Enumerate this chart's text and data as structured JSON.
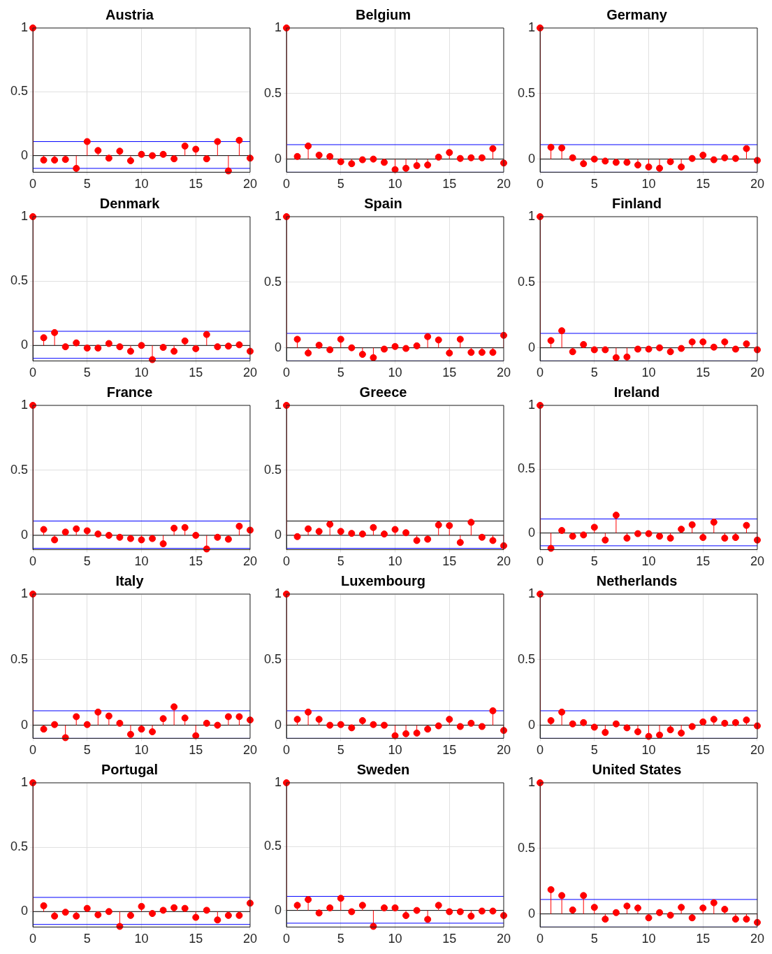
{
  "chart_data": [
    {
      "type": "lollipop",
      "title": "Austria",
      "x": [
        0,
        1,
        2,
        3,
        4,
        5,
        6,
        7,
        8,
        9,
        10,
        11,
        12,
        13,
        14,
        15,
        16,
        17,
        18,
        19,
        20
      ],
      "values": [
        1,
        -0.035,
        -0.035,
        -0.03,
        -0.1,
        0.11,
        0.04,
        -0.02,
        0.035,
        -0.04,
        0.01,
        0,
        0.01,
        -0.025,
        0.075,
        0.05,
        -0.025,
        0.11,
        -0.12,
        0.12,
        -0.02
      ],
      "color": "#ff0000",
      "marker": "circle",
      "xlim": [
        0,
        20
      ],
      "xticks": [
        0,
        5,
        10,
        15,
        20
      ],
      "ylim": [
        -0.13,
        1
      ],
      "yticks": [
        0,
        0.5,
        1
      ],
      "grid": true,
      "ref_lines": [
        {
          "axis": "y",
          "value": 0.11,
          "color": "#0000ff"
        },
        {
          "axis": "y",
          "value": -0.1,
          "color": "#0000ff"
        }
      ]
    },
    {
      "type": "lollipop",
      "title": "Belgium",
      "x": [
        0,
        1,
        2,
        3,
        4,
        5,
        6,
        7,
        8,
        9,
        10,
        11,
        12,
        13,
        14,
        15,
        16,
        17,
        18,
        19,
        20
      ],
      "values": [
        1,
        0.02,
        0.1,
        0.03,
        0.02,
        -0.02,
        -0.035,
        -0.005,
        0,
        -0.025,
        -0.08,
        -0.07,
        -0.05,
        -0.045,
        0.015,
        0.05,
        0.005,
        0.01,
        0.01,
        0.08,
        -0.03
      ],
      "color": "#ff0000",
      "marker": "circle",
      "xlim": [
        0,
        20
      ],
      "xticks": [
        0,
        5,
        10,
        15,
        20
      ],
      "ylim": [
        -0.1,
        1
      ],
      "yticks": [
        0,
        0.5,
        1
      ],
      "grid": true,
      "ref_lines": [
        {
          "axis": "y",
          "value": 0.11,
          "color": "#0000ff"
        },
        {
          "axis": "y",
          "value": -0.1,
          "color": "#0000ff"
        }
      ]
    },
    {
      "type": "lollipop",
      "title": "Germany",
      "x": [
        0,
        1,
        2,
        3,
        4,
        5,
        6,
        7,
        8,
        9,
        10,
        11,
        12,
        13,
        14,
        15,
        16,
        17,
        18,
        19,
        20
      ],
      "values": [
        1,
        0.09,
        0.085,
        0.01,
        -0.035,
        0,
        -0.015,
        -0.025,
        -0.025,
        -0.045,
        -0.06,
        -0.07,
        -0.02,
        -0.06,
        0.005,
        0.03,
        -0.005,
        0.01,
        0.005,
        0.08,
        -0.01
      ],
      "color": "#ff0000",
      "marker": "circle",
      "xlim": [
        0,
        20
      ],
      "xticks": [
        0,
        5,
        10,
        15,
        20
      ],
      "ylim": [
        -0.1,
        1
      ],
      "yticks": [
        0,
        0.5,
        1
      ],
      "grid": true,
      "ref_lines": [
        {
          "axis": "y",
          "value": 0.11,
          "color": "#0000ff"
        },
        {
          "axis": "y",
          "value": -0.1,
          "color": "#0000ff"
        }
      ]
    },
    {
      "type": "lollipop",
      "title": "Denmark",
      "x": [
        0,
        1,
        2,
        3,
        4,
        5,
        6,
        7,
        8,
        9,
        10,
        11,
        12,
        13,
        14,
        15,
        16,
        17,
        18,
        19,
        20
      ],
      "values": [
        1,
        0.06,
        0.1,
        -0.01,
        0.02,
        -0.02,
        -0.02,
        0.015,
        -0.01,
        -0.045,
        0,
        -0.11,
        -0.015,
        -0.045,
        0.035,
        -0.025,
        0.085,
        -0.01,
        -0.005,
        0.005,
        -0.045
      ],
      "color": "#ff0000",
      "marker": "circle",
      "xlim": [
        0,
        20
      ],
      "xticks": [
        0,
        5,
        10,
        15,
        20
      ],
      "ylim": [
        -0.12,
        1
      ],
      "yticks": [
        0,
        0.5,
        1
      ],
      "grid": true,
      "ref_lines": [
        {
          "axis": "y",
          "value": 0.11,
          "color": "#0000ff"
        },
        {
          "axis": "y",
          "value": -0.1,
          "color": "#0000ff"
        }
      ]
    },
    {
      "type": "lollipop",
      "title": "Spain",
      "x": [
        0,
        1,
        2,
        3,
        4,
        5,
        6,
        7,
        8,
        9,
        10,
        11,
        12,
        13,
        14,
        15,
        16,
        17,
        18,
        19,
        20
      ],
      "values": [
        1,
        0.065,
        -0.04,
        0.02,
        -0.015,
        0.065,
        0,
        -0.05,
        -0.075,
        -0.01,
        0.01,
        -0.005,
        0.015,
        0.085,
        0.06,
        -0.04,
        0.065,
        -0.035,
        -0.035,
        -0.035,
        0.095
      ],
      "color": "#ff0000",
      "marker": "circle",
      "xlim": [
        0,
        20
      ],
      "xticks": [
        0,
        5,
        10,
        15,
        20
      ],
      "ylim": [
        -0.1,
        1
      ],
      "yticks": [
        0,
        0.5,
        1
      ],
      "grid": true,
      "ref_lines": [
        {
          "axis": "y",
          "value": 0.11,
          "color": "#0000ff"
        },
        {
          "axis": "y",
          "value": -0.1,
          "color": "#0000ff"
        }
      ]
    },
    {
      "type": "lollipop",
      "title": "Finland",
      "x": [
        0,
        1,
        2,
        3,
        4,
        5,
        6,
        7,
        8,
        9,
        10,
        11,
        12,
        13,
        14,
        15,
        16,
        17,
        18,
        19,
        20
      ],
      "values": [
        1,
        0.055,
        0.13,
        -0.03,
        0.025,
        -0.015,
        -0.015,
        -0.075,
        -0.07,
        -0.01,
        -0.01,
        0,
        -0.03,
        -0.005,
        0.045,
        0.045,
        0.005,
        0.045,
        -0.01,
        0.03,
        -0.015
      ],
      "color": "#ff0000",
      "marker": "circle",
      "xlim": [
        0,
        20
      ],
      "xticks": [
        0,
        5,
        10,
        15,
        20
      ],
      "ylim": [
        -0.1,
        1
      ],
      "yticks": [
        0,
        0.5,
        1
      ],
      "grid": true,
      "ref_lines": [
        {
          "axis": "y",
          "value": 0.11,
          "color": "#0000ff"
        },
        {
          "axis": "y",
          "value": -0.1,
          "color": "#0000ff"
        }
      ]
    },
    {
      "type": "lollipop",
      "title": "France",
      "x": [
        0,
        1,
        2,
        3,
        4,
        5,
        6,
        7,
        8,
        9,
        10,
        11,
        12,
        13,
        14,
        15,
        16,
        17,
        18,
        19,
        20
      ],
      "values": [
        1,
        0.045,
        -0.035,
        0.025,
        0.05,
        0.035,
        0.01,
        0,
        -0.015,
        -0.025,
        -0.035,
        -0.025,
        -0.065,
        0.055,
        0.06,
        0,
        -0.105,
        -0.015,
        -0.03,
        0.07,
        0.04
      ],
      "color": "#ff0000",
      "marker": "circle",
      "xlim": [
        0,
        20
      ],
      "xticks": [
        0,
        5,
        10,
        15,
        20
      ],
      "ylim": [
        -0.11,
        1
      ],
      "yticks": [
        0,
        0.5,
        1
      ],
      "grid": true,
      "ref_lines": [
        {
          "axis": "y",
          "value": 0.11,
          "color": "#0000ff"
        },
        {
          "axis": "y",
          "value": -0.1,
          "color": "#0000ff"
        }
      ]
    },
    {
      "type": "lollipop",
      "title": "Greece",
      "x": [
        0,
        1,
        2,
        3,
        4,
        5,
        6,
        7,
        8,
        9,
        10,
        11,
        12,
        13,
        14,
        15,
        16,
        17,
        18,
        19,
        20
      ],
      "values": [
        1,
        -0.01,
        0.05,
        0.03,
        0.085,
        0.03,
        0.015,
        0.01,
        0.06,
        0.01,
        0.045,
        0.02,
        -0.04,
        -0.03,
        0.08,
        0.075,
        -0.055,
        0.1,
        -0.015,
        -0.04,
        -0.08
      ],
      "color": "#ff0000",
      "marker": "circle",
      "xlim": [
        0,
        20
      ],
      "xticks": [
        0,
        5,
        10,
        15,
        20
      ],
      "ylim": [
        -0.11,
        1
      ],
      "yticks": [
        0,
        0.5,
        1
      ],
      "grid": true,
      "ref_lines": [
        {
          "axis": "y",
          "value": 0.11,
          "color": "#000000"
        },
        {
          "axis": "y",
          "value": -0.1,
          "color": "#0000ff"
        }
      ]
    },
    {
      "type": "lollipop",
      "title": "Ireland",
      "x": [
        0,
        1,
        2,
        3,
        4,
        5,
        6,
        7,
        8,
        9,
        10,
        11,
        12,
        13,
        14,
        15,
        16,
        17,
        18,
        19,
        20
      ],
      "values": [
        1,
        -0.12,
        0.02,
        -0.025,
        -0.015,
        0.045,
        -0.055,
        0.14,
        -0.04,
        -0.005,
        -0.005,
        -0.025,
        -0.04,
        0.03,
        0.065,
        -0.035,
        0.085,
        -0.04,
        -0.035,
        0.06,
        -0.055
      ],
      "color": "#ff0000",
      "marker": "circle",
      "xlim": [
        0,
        20
      ],
      "xticks": [
        0,
        5,
        10,
        15,
        20
      ],
      "ylim": [
        -0.13,
        1
      ],
      "yticks": [
        0,
        0.5,
        1
      ],
      "grid": true,
      "ref_lines": [
        {
          "axis": "y",
          "value": 0.11,
          "color": "#0000ff"
        },
        {
          "axis": "y",
          "value": -0.1,
          "color": "#0000ff"
        }
      ]
    },
    {
      "type": "lollipop",
      "title": "Italy",
      "x": [
        0,
        1,
        2,
        3,
        4,
        5,
        6,
        7,
        8,
        9,
        10,
        11,
        12,
        13,
        14,
        15,
        16,
        17,
        18,
        19,
        20
      ],
      "values": [
        1,
        -0.03,
        0.005,
        -0.095,
        0.065,
        0.005,
        0.1,
        0.07,
        0.015,
        -0.07,
        -0.03,
        -0.05,
        0.05,
        0.14,
        0.055,
        -0.08,
        0.015,
        0,
        0.065,
        0.065,
        0.04
      ],
      "color": "#ff0000",
      "marker": "circle",
      "xlim": [
        0,
        20
      ],
      "xticks": [
        0,
        5,
        10,
        15,
        20
      ],
      "ylim": [
        -0.1,
        1
      ],
      "yticks": [
        0,
        0.5,
        1
      ],
      "grid": true,
      "ref_lines": [
        {
          "axis": "y",
          "value": 0.11,
          "color": "#0000ff"
        },
        {
          "axis": "y",
          "value": -0.1,
          "color": "#0000ff"
        }
      ]
    },
    {
      "type": "lollipop",
      "title": "Luxembourg",
      "x": [
        0,
        1,
        2,
        3,
        4,
        5,
        6,
        7,
        8,
        9,
        10,
        11,
        12,
        13,
        14,
        15,
        16,
        17,
        18,
        19,
        20
      ],
      "values": [
        1,
        0.045,
        0.1,
        0.045,
        0,
        0.005,
        -0.02,
        0.035,
        0.005,
        0,
        -0.08,
        -0.065,
        -0.06,
        -0.03,
        -0.005,
        0.045,
        -0.01,
        0.015,
        -0.01,
        0.11,
        -0.04
      ],
      "color": "#ff0000",
      "marker": "circle",
      "xlim": [
        0,
        20
      ],
      "xticks": [
        0,
        5,
        10,
        15,
        20
      ],
      "ylim": [
        -0.1,
        1
      ],
      "yticks": [
        0,
        0.5,
        1
      ],
      "grid": true,
      "ref_lines": [
        {
          "axis": "y",
          "value": 0.11,
          "color": "#0000ff"
        },
        {
          "axis": "y",
          "value": -0.1,
          "color": "#0000ff"
        }
      ]
    },
    {
      "type": "lollipop",
      "title": "Netherlands",
      "x": [
        0,
        1,
        2,
        3,
        4,
        5,
        6,
        7,
        8,
        9,
        10,
        11,
        12,
        13,
        14,
        15,
        16,
        17,
        18,
        19,
        20
      ],
      "values": [
        1,
        0.035,
        0.1,
        0.01,
        0.02,
        -0.015,
        -0.055,
        0.01,
        -0.02,
        -0.05,
        -0.085,
        -0.075,
        -0.035,
        -0.06,
        -0.01,
        0.025,
        0.045,
        0.015,
        0.02,
        0.04,
        -0.005
      ],
      "color": "#ff0000",
      "marker": "circle",
      "xlim": [
        0,
        20
      ],
      "xticks": [
        0,
        5,
        10,
        15,
        20
      ],
      "ylim": [
        -0.1,
        1
      ],
      "yticks": [
        0,
        0.5,
        1
      ],
      "grid": true,
      "ref_lines": [
        {
          "axis": "y",
          "value": 0.11,
          "color": "#0000ff"
        },
        {
          "axis": "y",
          "value": -0.1,
          "color": "#0000ff"
        }
      ]
    },
    {
      "type": "lollipop",
      "title": "Portugal",
      "x": [
        0,
        1,
        2,
        3,
        4,
        5,
        6,
        7,
        8,
        9,
        10,
        11,
        12,
        13,
        14,
        15,
        16,
        17,
        18,
        19,
        20
      ],
      "values": [
        1,
        0.045,
        -0.035,
        -0.005,
        -0.035,
        0.025,
        -0.025,
        0,
        -0.115,
        -0.03,
        0.04,
        -0.015,
        0.01,
        0.03,
        0.025,
        -0.045,
        0.01,
        -0.065,
        -0.03,
        -0.03,
        0.065
      ],
      "color": "#ff0000",
      "marker": "circle",
      "xlim": [
        0,
        20
      ],
      "xticks": [
        0,
        5,
        10,
        15,
        20
      ],
      "ylim": [
        -0.12,
        1
      ],
      "yticks": [
        0,
        0.5,
        1
      ],
      "grid": true,
      "ref_lines": [
        {
          "axis": "y",
          "value": 0.11,
          "color": "#0000ff"
        },
        {
          "axis": "y",
          "value": -0.1,
          "color": "#0000ff"
        }
      ]
    },
    {
      "type": "lollipop",
      "title": "Sweden",
      "x": [
        0,
        1,
        2,
        3,
        4,
        5,
        6,
        7,
        8,
        9,
        10,
        11,
        12,
        13,
        14,
        15,
        16,
        17,
        18,
        19,
        20
      ],
      "values": [
        1,
        0.04,
        0.085,
        -0.02,
        0.02,
        0.095,
        -0.01,
        0.04,
        -0.125,
        0.02,
        0.02,
        -0.04,
        0,
        -0.07,
        0.04,
        -0.01,
        -0.01,
        -0.045,
        -0.005,
        -0.005,
        -0.04
      ],
      "color": "#ff0000",
      "marker": "circle",
      "xlim": [
        0,
        20
      ],
      "xticks": [
        0,
        5,
        10,
        15,
        20
      ],
      "ylim": [
        -0.13,
        1
      ],
      "yticks": [
        0,
        0.5,
        1
      ],
      "grid": true,
      "ref_lines": [
        {
          "axis": "y",
          "value": 0.11,
          "color": "#0000ff"
        },
        {
          "axis": "y",
          "value": -0.1,
          "color": "#0000ff"
        }
      ]
    },
    {
      "type": "lollipop",
      "title": "United States",
      "x": [
        0,
        1,
        2,
        3,
        4,
        5,
        6,
        7,
        8,
        9,
        10,
        11,
        12,
        13,
        14,
        15,
        16,
        17,
        18,
        19,
        20
      ],
      "values": [
        1,
        0.185,
        0.14,
        0.03,
        0.14,
        0.05,
        -0.04,
        0.01,
        0.06,
        0.045,
        -0.03,
        0.01,
        -0.01,
        0.05,
        -0.03,
        0.045,
        0.085,
        0.035,
        -0.04,
        -0.04,
        -0.065
      ],
      "color": "#ff0000",
      "marker": "circle",
      "xlim": [
        0,
        20
      ],
      "xticks": [
        0,
        5,
        10,
        15,
        20
      ],
      "ylim": [
        -0.1,
        1
      ],
      "yticks": [
        0,
        0.5,
        1
      ],
      "grid": true,
      "ref_lines": [
        {
          "axis": "y",
          "value": 0.11,
          "color": "#0000ff"
        },
        {
          "axis": "y",
          "value": -0.1,
          "color": "#0000ff"
        }
      ]
    }
  ]
}
